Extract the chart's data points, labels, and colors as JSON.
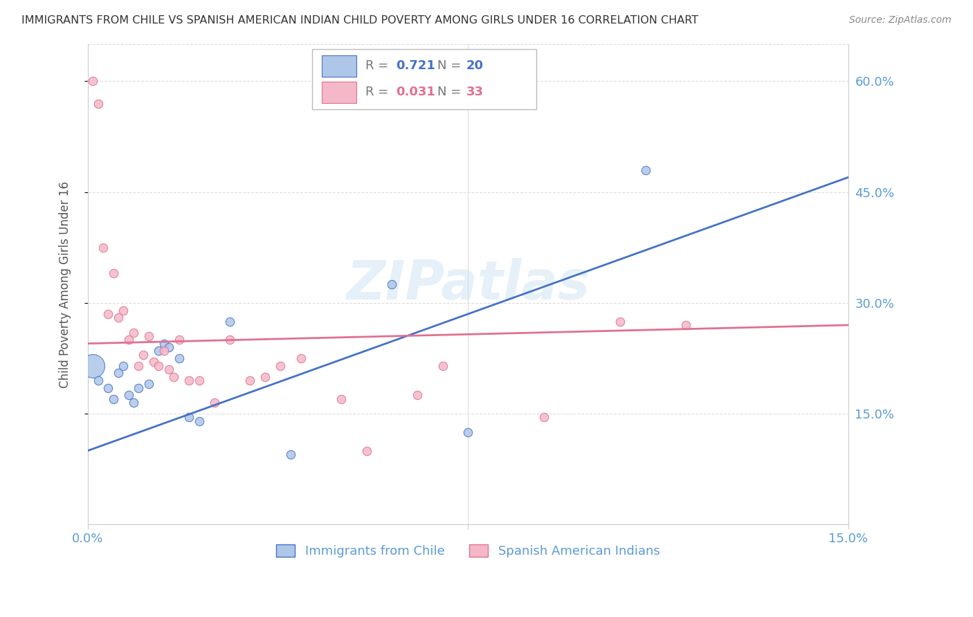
{
  "title": "IMMIGRANTS FROM CHILE VS SPANISH AMERICAN INDIAN CHILD POVERTY AMONG GIRLS UNDER 16 CORRELATION CHART",
  "source": "Source: ZipAtlas.com",
  "ylabel": "Child Poverty Among Girls Under 16",
  "xlim": [
    0.0,
    0.15
  ],
  "ylim": [
    0.0,
    0.65
  ],
  "ytick_labels": [
    "15.0%",
    "30.0%",
    "45.0%",
    "60.0%"
  ],
  "ytick_values": [
    0.15,
    0.3,
    0.45,
    0.6
  ],
  "legend_blue_label": "Immigrants from Chile",
  "legend_pink_label": "Spanish American Indians",
  "r_blue": "0.721",
  "n_blue": "20",
  "r_pink": "0.031",
  "n_pink": "33",
  "blue_color": "#aec6e8",
  "pink_color": "#f4b8c8",
  "line_blue": "#4472c4",
  "line_pink": "#e07090",
  "watermark": "ZIPatlas",
  "blue_scatter_x": [
    0.002,
    0.004,
    0.005,
    0.006,
    0.007,
    0.008,
    0.009,
    0.01,
    0.012,
    0.014,
    0.015,
    0.016,
    0.018,
    0.02,
    0.022,
    0.028,
    0.04,
    0.06,
    0.075,
    0.11
  ],
  "blue_scatter_y": [
    0.195,
    0.185,
    0.17,
    0.205,
    0.215,
    0.175,
    0.165,
    0.185,
    0.19,
    0.235,
    0.245,
    0.24,
    0.225,
    0.145,
    0.14,
    0.275,
    0.095,
    0.325,
    0.125,
    0.48
  ],
  "blue_large_x": [
    0.001
  ],
  "blue_large_y": [
    0.215
  ],
  "blue_large_size": [
    600
  ],
  "pink_scatter_x": [
    0.001,
    0.002,
    0.003,
    0.004,
    0.005,
    0.006,
    0.007,
    0.008,
    0.009,
    0.01,
    0.011,
    0.012,
    0.013,
    0.014,
    0.015,
    0.016,
    0.017,
    0.018,
    0.02,
    0.022,
    0.025,
    0.028,
    0.032,
    0.035,
    0.038,
    0.042,
    0.05,
    0.055,
    0.065,
    0.07,
    0.09,
    0.105,
    0.118
  ],
  "pink_scatter_y": [
    0.6,
    0.57,
    0.375,
    0.285,
    0.34,
    0.28,
    0.29,
    0.25,
    0.26,
    0.215,
    0.23,
    0.255,
    0.22,
    0.215,
    0.235,
    0.21,
    0.2,
    0.25,
    0.195,
    0.195,
    0.165,
    0.25,
    0.195,
    0.2,
    0.215,
    0.225,
    0.17,
    0.1,
    0.175,
    0.215,
    0.145,
    0.275,
    0.27
  ],
  "background_color": "#ffffff",
  "grid_color": "#dddddd",
  "title_color": "#333333",
  "tick_label_color": "#5b9bd5"
}
